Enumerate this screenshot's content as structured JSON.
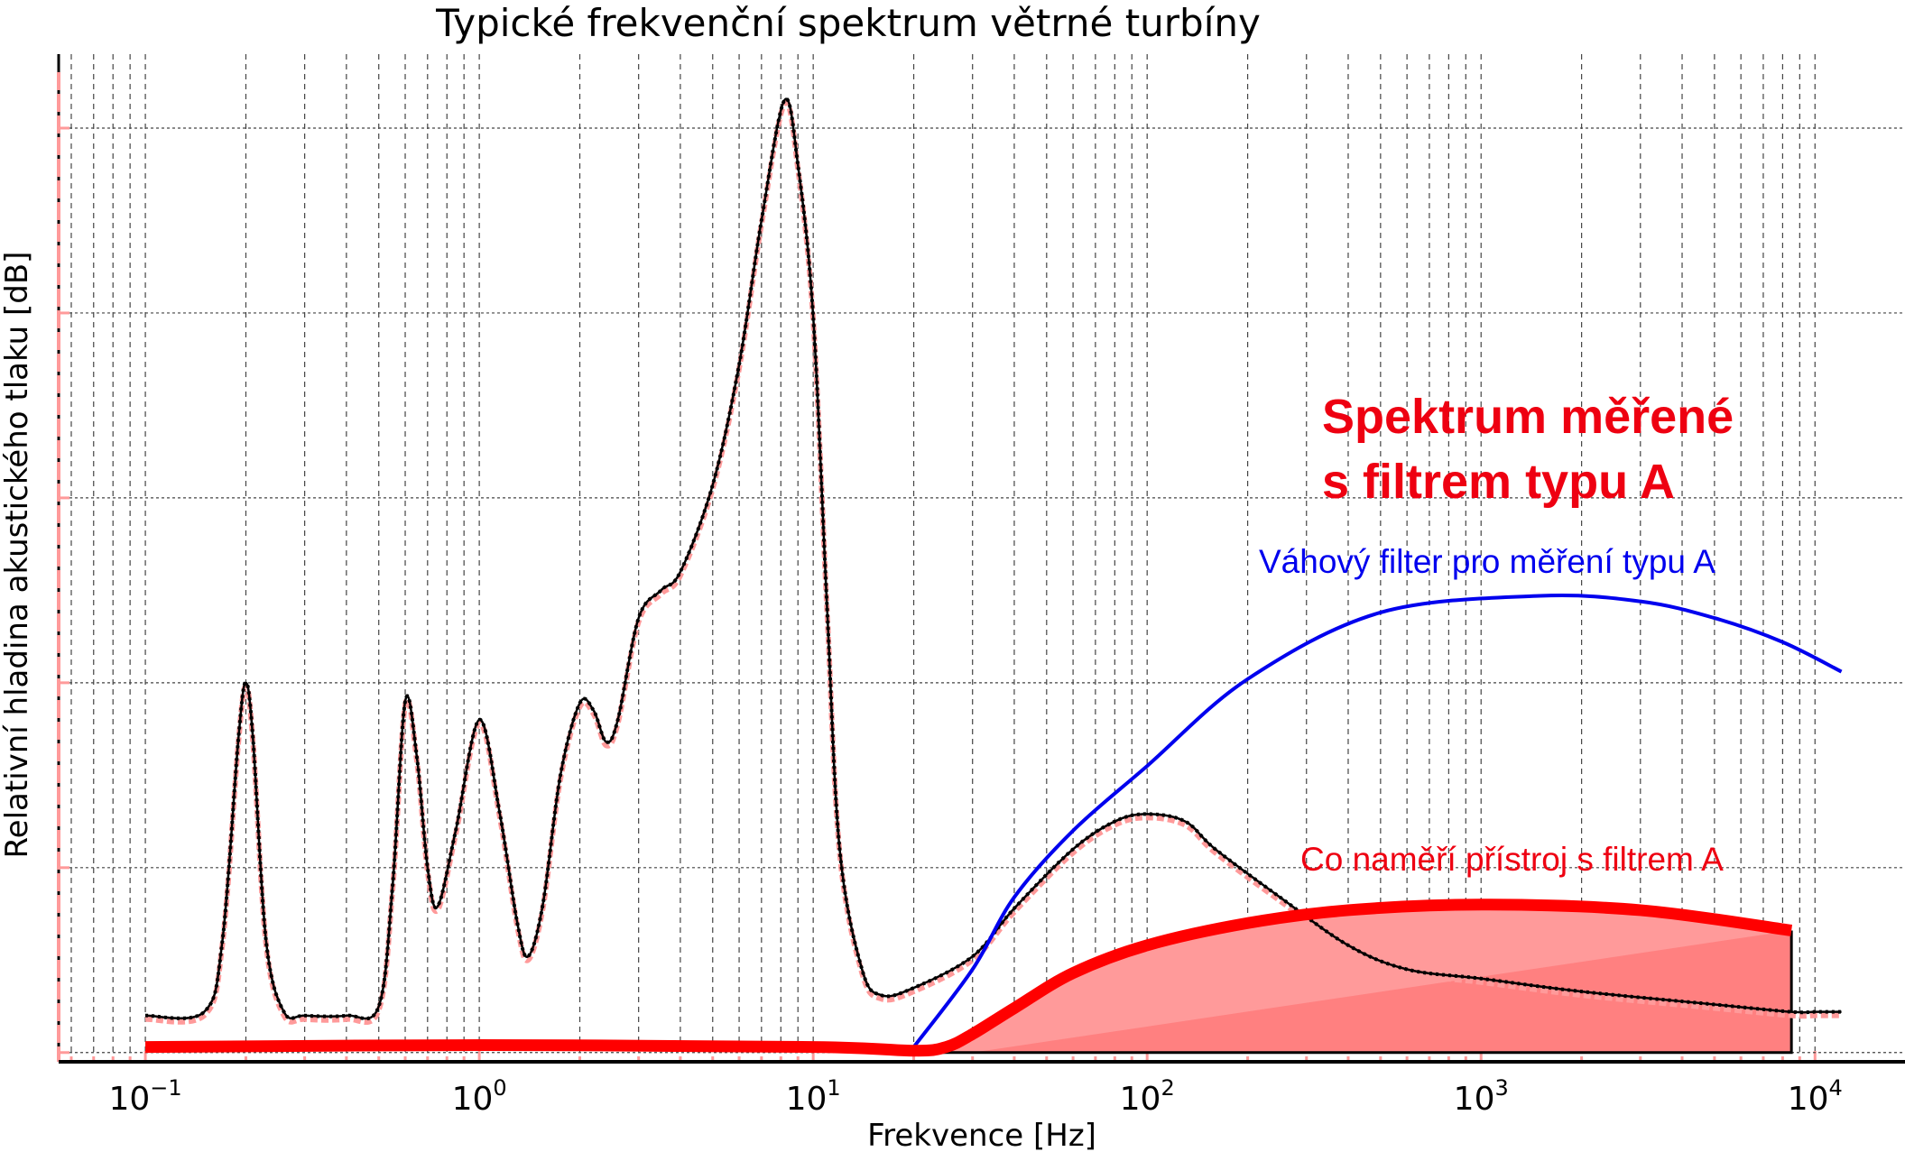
{
  "chart_data": {
    "type": "line",
    "title": "Typické frekvenční spektrum větrné turbíny",
    "xlabel": "Frekvence [Hz]",
    "ylabel": "Relativní hladina akustického tlaku [dB]",
    "xscale": "log",
    "xlim": [
      0.055,
      18600
    ],
    "ylim": [
      -0.05,
      5.4
    ],
    "x_ticks": [
      {
        "value": 0.1,
        "base": "10",
        "exp": "−1"
      },
      {
        "value": 1,
        "base": "10",
        "exp": "0"
      },
      {
        "value": 10,
        "base": "10",
        "exp": "1"
      },
      {
        "value": 100,
        "base": "10",
        "exp": "2"
      },
      {
        "value": 1000,
        "base": "10",
        "exp": "3"
      },
      {
        "value": 10000,
        "base": "10",
        "exp": "4"
      }
    ],
    "y_gridlines": [
      0,
      1,
      2,
      3,
      4,
      5
    ],
    "grid": true,
    "colors": {
      "spectrum": "#000000",
      "spectrum_shadow": "#ff9a9a",
      "a_filter": "#0000ee",
      "measured": "#ff0000",
      "fill_light": "#ff9a9a",
      "fill_dark": "#ff8080",
      "annotation_red": "#ee0011",
      "annotation_blue": "#0000ee"
    },
    "series": [
      {
        "key": "spectrum",
        "x": [
          0.1,
          0.15,
          0.17,
          0.19,
          0.2,
          0.21,
          0.23,
          0.26,
          0.3,
          0.4,
          0.5,
          0.55,
          0.6,
          0.65,
          0.7,
          0.75,
          0.85,
          1.0,
          1.15,
          1.3,
          1.4,
          1.55,
          1.75,
          2.0,
          2.2,
          2.4,
          2.6,
          3.0,
          3.5,
          4.0,
          5.0,
          6.0,
          7.0,
          8.2,
          9.0,
          10,
          11,
          12,
          14,
          16,
          20,
          30,
          40,
          60,
          80,
          100,
          130,
          160,
          250,
          400,
          600,
          1000,
          2000,
          5000,
          8500,
          10000,
          12000
        ],
        "y": [
          0.2,
          0.22,
          0.6,
          1.7,
          2.0,
          1.7,
          0.6,
          0.22,
          0.2,
          0.2,
          0.25,
          0.9,
          1.9,
          1.6,
          1.0,
          0.79,
          1.2,
          1.8,
          1.3,
          0.7,
          0.52,
          0.8,
          1.5,
          1.89,
          1.85,
          1.68,
          1.8,
          2.35,
          2.5,
          2.6,
          3.07,
          3.72,
          4.5,
          5.15,
          4.8,
          3.98,
          2.41,
          1.1,
          0.45,
          0.31,
          0.35,
          0.52,
          0.78,
          1.1,
          1.25,
          1.29,
          1.25,
          1.1,
          0.84,
          0.58,
          0.45,
          0.4,
          0.33,
          0.26,
          0.22,
          0.22,
          0.22
        ]
      },
      {
        "key": "a_filter",
        "x": [
          20,
          30,
          40,
          60,
          100,
          200,
          500,
          1500,
          3000,
          5000,
          8000,
          12000
        ],
        "y": [
          0.03,
          0.45,
          0.84,
          1.2,
          1.55,
          2.02,
          2.38,
          2.47,
          2.44,
          2.35,
          2.22,
          2.06
        ]
      },
      {
        "key": "measured",
        "x": [
          0.1,
          1,
          10,
          20,
          25,
          30,
          40,
          60,
          100,
          200,
          400,
          1000,
          3000,
          8500
        ],
        "y": [
          0.03,
          0.04,
          0.03,
          0.01,
          0.03,
          0.1,
          0.24,
          0.43,
          0.58,
          0.7,
          0.77,
          0.8,
          0.77,
          0.66
        ]
      }
    ],
    "annotations": [
      {
        "text": "Spektrum měřené",
        "color": "red",
        "bold": true
      },
      {
        "text": "s filtrem typu A",
        "color": "red",
        "bold": true
      },
      {
        "text": "Váhový filter pro měření typu A",
        "color": "blue"
      },
      {
        "text": "Co naměří přístroj s filtrem A",
        "color": "red"
      }
    ]
  }
}
